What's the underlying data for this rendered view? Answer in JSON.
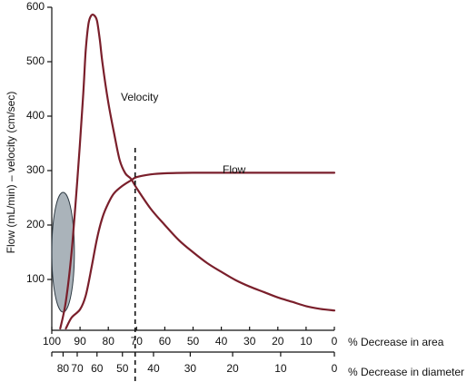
{
  "chart_data": {
    "type": "line",
    "title": "",
    "ylabel": "Flow (mL/min) – velocity (cm/sec)",
    "ylim": [
      0,
      600
    ],
    "yticks": [
      100,
      200,
      300,
      400,
      500,
      600
    ],
    "area_axis": {
      "label": "% Decrease in area",
      "range": [
        100,
        0
      ],
      "ticks": [
        "100",
        "90",
        "80",
        "70",
        "60",
        "50",
        "40",
        "30",
        "20",
        "10",
        "0"
      ]
    },
    "diameter_axis": {
      "label": "% Decrease in diameter",
      "ticks": [
        {
          "label": "80",
          "area": 96
        },
        {
          "label": "70",
          "area": 91
        },
        {
          "label": "60",
          "area": 84
        },
        {
          "label": "50",
          "area": 75
        },
        {
          "label": "40",
          "area": 64
        },
        {
          "label": "30",
          "area": 51
        },
        {
          "label": "20",
          "area": 36
        },
        {
          "label": "10",
          "area": 19
        },
        {
          "label": "0",
          "area": 0
        }
      ]
    },
    "series": [
      {
        "name": "Velocity",
        "color": "#7a1f2b",
        "points": [
          [
            97,
            10
          ],
          [
            95,
            60
          ],
          [
            93,
            150
          ],
          [
            91,
            280
          ],
          [
            89,
            430
          ],
          [
            88,
            520
          ],
          [
            87,
            570
          ],
          [
            86,
            585
          ],
          [
            85,
            585
          ],
          [
            84,
            575
          ],
          [
            83,
            540
          ],
          [
            82,
            495
          ],
          [
            80,
            425
          ],
          [
            78,
            370
          ],
          [
            76,
            320
          ],
          [
            74,
            295
          ],
          [
            72,
            285
          ],
          [
            70,
            268
          ],
          [
            65,
            230
          ],
          [
            60,
            200
          ],
          [
            55,
            172
          ],
          [
            50,
            150
          ],
          [
            45,
            130
          ],
          [
            40,
            114
          ],
          [
            35,
            99
          ],
          [
            30,
            87
          ],
          [
            25,
            77
          ],
          [
            20,
            67
          ],
          [
            15,
            59
          ],
          [
            10,
            51
          ],
          [
            5,
            46
          ],
          [
            0,
            43
          ]
        ]
      },
      {
        "name": "Flow",
        "color": "#7a1f2b",
        "points": [
          [
            95,
            10
          ],
          [
            93,
            30
          ],
          [
            90,
            45
          ],
          [
            88,
            70
          ],
          [
            86,
            120
          ],
          [
            84,
            175
          ],
          [
            82,
            215
          ],
          [
            80,
            240
          ],
          [
            78,
            258
          ],
          [
            75,
            272
          ],
          [
            72,
            282
          ],
          [
            70,
            288
          ],
          [
            65,
            293
          ],
          [
            60,
            295
          ],
          [
            50,
            296
          ],
          [
            40,
            296
          ],
          [
            20,
            296
          ],
          [
            0,
            296
          ]
        ]
      }
    ],
    "annotations": {
      "vertical_dashed_line_area": 70.5,
      "shaded_ellipse": {
        "center_area": 96,
        "center_y": 150,
        "rx_area": 4,
        "ry_y": 110,
        "fill": "#8d9aa3"
      }
    }
  }
}
